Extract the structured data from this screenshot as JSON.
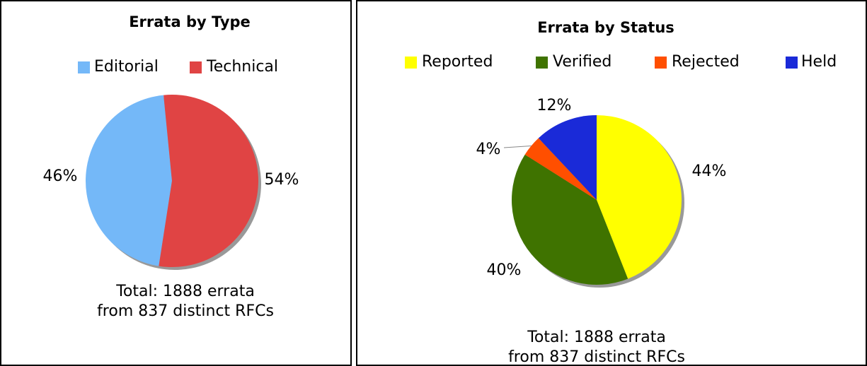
{
  "chart_data": [
    {
      "type": "pie",
      "title": "Errata by Type",
      "categories": [
        "Editorial",
        "Technical"
      ],
      "values": [
        46,
        54
      ],
      "value_labels": [
        "46%",
        "54%"
      ],
      "colors": [
        "#74b8f8",
        "#e04444"
      ],
      "annotations": [
        "Total: 1888 errata",
        "from 837 distinct RFCs"
      ]
    },
    {
      "type": "pie",
      "title": "Errata by Status",
      "categories": [
        "Reported",
        "Verified",
        "Rejected",
        "Held"
      ],
      "values": [
        44,
        40,
        4,
        12
      ],
      "value_labels": [
        "44%",
        "40%",
        "4%",
        "12%"
      ],
      "colors": [
        "#ffff00",
        "#3f7300",
        "#ff4f00",
        "#1a2ad8"
      ],
      "annotations": [
        "Total: 1888 errata",
        "from 837 distinct RFCs"
      ]
    }
  ]
}
